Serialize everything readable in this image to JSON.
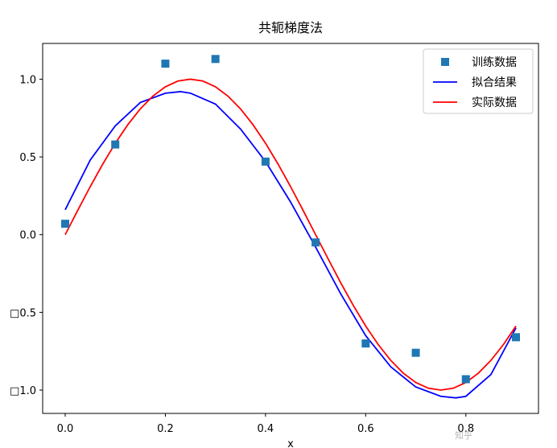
{
  "chart_data": {
    "type": "scatter+line",
    "title": "共轭梯度法",
    "xlabel": "x",
    "ylabel": "",
    "xlim": [
      -0.045,
      0.945
    ],
    "ylim": [
      -1.15,
      1.23
    ],
    "x_ticks": [
      0.0,
      0.2,
      0.4,
      0.6,
      0.8
    ],
    "x_tick_labels": [
      "0.0",
      "0.2",
      "0.4",
      "0.6",
      "0.8"
    ],
    "y_ticks": [
      1.0,
      0.5,
      0.0,
      -0.5,
      -1.0
    ],
    "y_tick_labels": [
      "1.0",
      "0.5",
      "0.0",
      "□0.5",
      "□1.0"
    ],
    "grid": false,
    "legend_position": "upper right",
    "series": [
      {
        "name": "训练数据",
        "type": "scatter",
        "marker": "square",
        "color": "#1f77b4",
        "x": [
          0.0,
          0.1,
          0.2,
          0.3,
          0.4,
          0.5,
          0.6,
          0.7,
          0.8,
          0.9
        ],
        "y": [
          0.07,
          0.58,
          1.1,
          1.13,
          0.47,
          -0.05,
          -0.7,
          -0.76,
          -0.93,
          -0.66
        ]
      },
      {
        "name": "拟合结果",
        "type": "line",
        "color": "#0000ff",
        "x": [
          0.0,
          0.05,
          0.1,
          0.15,
          0.2,
          0.23,
          0.25,
          0.3,
          0.35,
          0.4,
          0.45,
          0.5,
          0.55,
          0.6,
          0.65,
          0.7,
          0.75,
          0.78,
          0.8,
          0.85,
          0.9
        ],
        "y": [
          0.16,
          0.48,
          0.7,
          0.85,
          0.91,
          0.92,
          0.91,
          0.84,
          0.68,
          0.47,
          0.21,
          -0.08,
          -0.38,
          -0.65,
          -0.85,
          -0.98,
          -1.04,
          -1.05,
          -1.04,
          -0.9,
          -0.6
        ]
      },
      {
        "name": "实际数据",
        "type": "line",
        "color": "#ff0000",
        "x": [
          0.0,
          0.025,
          0.05,
          0.075,
          0.1,
          0.125,
          0.15,
          0.175,
          0.2,
          0.225,
          0.25,
          0.275,
          0.3,
          0.325,
          0.35,
          0.375,
          0.4,
          0.425,
          0.45,
          0.475,
          0.5,
          0.525,
          0.55,
          0.575,
          0.6,
          0.625,
          0.65,
          0.675,
          0.7,
          0.725,
          0.75,
          0.775,
          0.8,
          0.825,
          0.85,
          0.875,
          0.9
        ],
        "y": [
          0.0,
          0.156,
          0.309,
          0.454,
          0.588,
          0.707,
          0.809,
          0.891,
          0.951,
          0.988,
          1.0,
          0.988,
          0.951,
          0.891,
          0.809,
          0.707,
          0.588,
          0.454,
          0.309,
          0.156,
          0.0,
          -0.156,
          -0.309,
          -0.454,
          -0.588,
          -0.707,
          -0.809,
          -0.891,
          -0.951,
          -0.988,
          -1.0,
          -0.988,
          -0.951,
          -0.891,
          -0.809,
          -0.707,
          -0.588
        ]
      }
    ],
    "watermark": "知乎"
  }
}
